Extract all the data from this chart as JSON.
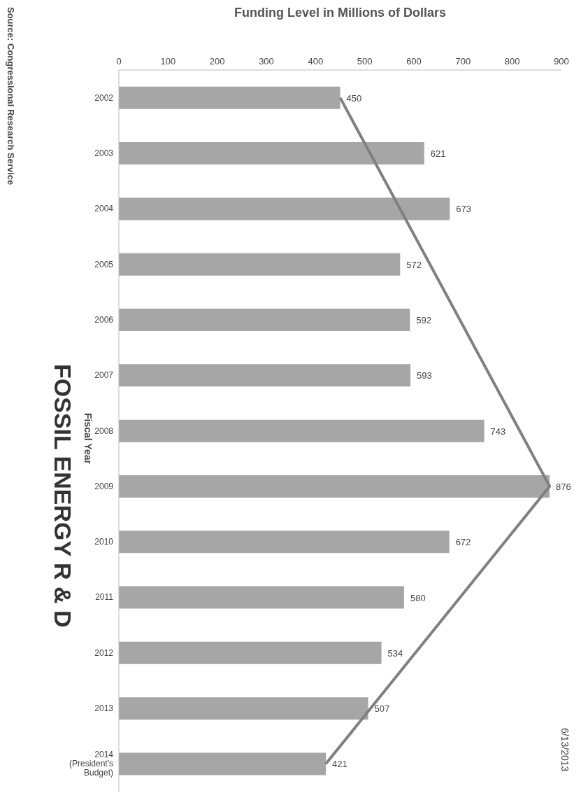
{
  "chart_data": {
    "type": "bar",
    "orientation": "horizontal",
    "title": "FOSSIL ENERGY R & D",
    "ylabel": "Fiscal Year",
    "xlabel": "Funding Level in Millions of Dollars",
    "categories": [
      "2002",
      "2003",
      "2004",
      "2005",
      "2006",
      "2007",
      "2008",
      "2009",
      "2010",
      "2011",
      "2012",
      "2013",
      "2014 (President's Budget)"
    ],
    "series": [
      {
        "color": "#a6a6a6",
        "values": [
          450,
          621,
          673,
          572,
          592,
          593,
          743,
          876,
          672,
          580,
          534,
          507,
          421
        ],
        "value_labels": [
          "450",
          "621",
          "673",
          "572",
          "592",
          "593",
          "743",
          "876",
          "672",
          "580",
          "534",
          "507",
          "421"
        ]
      },
      {
        "type": "line",
        "color": "#808080",
        "values": [
          450,
          null,
          null,
          null,
          null,
          null,
          null,
          876,
          null,
          null,
          null,
          null,
          421
        ]
      }
    ],
    "xlim": [
      0,
      900
    ],
    "xticks": [
      0,
      100,
      200,
      300,
      400,
      500,
      600,
      700,
      800,
      900
    ],
    "grid": false,
    "legend": false,
    "marker": "none",
    "line_style": "solid",
    "annotations": [
      "Source: Congressional Research Service",
      "6/13/2013"
    ]
  }
}
